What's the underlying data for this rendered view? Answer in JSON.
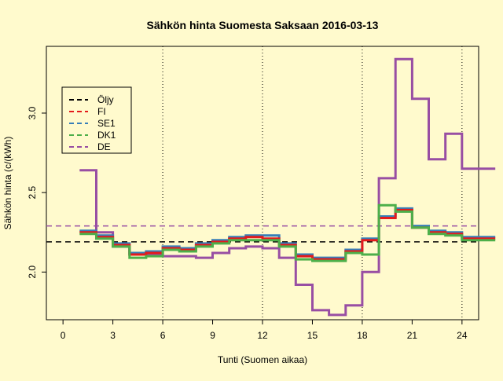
{
  "chart_data": {
    "type": "line",
    "step": true,
    "title": "Sähkön hinta Suomesta Saksaan 2016-03-13",
    "xlabel": "Tunti (Suomen aikaa)",
    "ylabel": "Sähkön hinta (c/(kWh)",
    "xlim": [
      -1,
      25
    ],
    "ylim": [
      1.7,
      3.42
    ],
    "x_ticks": [
      0,
      3,
      6,
      9,
      12,
      15,
      18,
      21,
      24
    ],
    "y_ticks": [
      2.0,
      2.5,
      3.0
    ],
    "y_tick_labels": [
      "2.0",
      "2.5",
      "3.0"
    ],
    "vertical_lines": [
      6,
      12,
      18,
      24
    ],
    "legend_position": "top-left",
    "hours": [
      1,
      2,
      3,
      4,
      5,
      6,
      7,
      8,
      9,
      10,
      11,
      12,
      13,
      14,
      15,
      16,
      17,
      18,
      19,
      20,
      21,
      22,
      23,
      24,
      25
    ],
    "series": [
      {
        "name": "Öljy",
        "color": "#000000",
        "dashed": true,
        "constant": 2.19,
        "values": []
      },
      {
        "name": "FI",
        "color": "#e41a1c",
        "dashed": true,
        "values": [
          2.25,
          2.22,
          2.17,
          2.11,
          2.12,
          2.15,
          2.14,
          2.17,
          2.19,
          2.21,
          2.22,
          2.21,
          2.17,
          2.1,
          2.08,
          2.08,
          2.13,
          2.2,
          2.34,
          2.39,
          2.28,
          2.25,
          2.24,
          2.21,
          2.21
        ]
      },
      {
        "name": "SE1",
        "color": "#377eb8",
        "dashed": true,
        "values": [
          2.26,
          2.23,
          2.18,
          2.12,
          2.13,
          2.16,
          2.15,
          2.18,
          2.2,
          2.22,
          2.23,
          2.23,
          2.18,
          2.11,
          2.09,
          2.09,
          2.14,
          2.21,
          2.35,
          2.4,
          2.29,
          2.26,
          2.25,
          2.22,
          2.22
        ]
      },
      {
        "name": "DK1",
        "color": "#4daf4a",
        "dashed": true,
        "values": [
          2.24,
          2.21,
          2.16,
          2.09,
          2.1,
          2.14,
          2.13,
          2.16,
          2.18,
          2.2,
          2.2,
          2.2,
          2.16,
          2.08,
          2.07,
          2.07,
          2.12,
          2.11,
          2.42,
          2.38,
          2.28,
          2.24,
          2.23,
          2.2,
          2.2
        ]
      },
      {
        "name": "DE",
        "color": "#984ea3",
        "dashed": true,
        "constant": 2.29,
        "values": [
          2.64,
          2.25,
          2.16,
          2.11,
          2.11,
          2.1,
          2.1,
          2.09,
          2.12,
          2.15,
          2.16,
          2.15,
          2.09,
          1.92,
          1.76,
          1.73,
          1.79,
          2.0,
          2.59,
          3.34,
          3.09,
          2.71,
          2.87,
          2.65,
          2.65
        ]
      }
    ]
  }
}
